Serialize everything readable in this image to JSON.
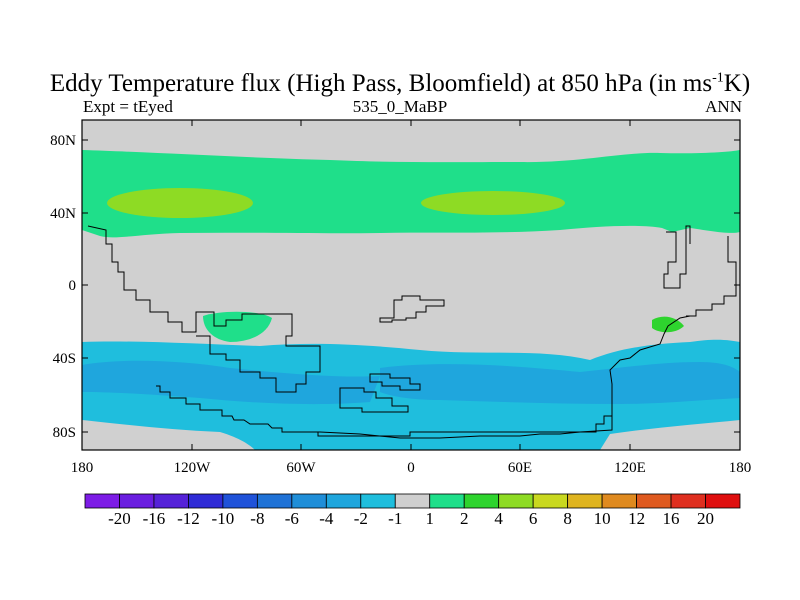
{
  "title": {
    "main": "Eddy Temperature flux (High Pass, Bloomfield) at 850 hPa (in ms",
    "sup": "-1",
    "unit_end": "K)"
  },
  "subtitle": {
    "left": "Expt = tEyed",
    "center": "535_0_MaBP",
    "right": "ANN"
  },
  "axes": {
    "y_ticks": [
      "80N",
      "40N",
      "0",
      "40S",
      "80S"
    ],
    "x_ticks": [
      "180",
      "120W",
      "60W",
      "0",
      "60E",
      "120E",
      "180"
    ]
  },
  "colorbar": {
    "labels": [
      "-20",
      "-16",
      "-12",
      "-10",
      "-8",
      "-6",
      "-4",
      "-2",
      "-1",
      "1",
      "2",
      "4",
      "6",
      "8",
      "10",
      "12",
      "16",
      "20"
    ],
    "colors": [
      "#7d1ce6",
      "#6a1ee0",
      "#5522d8",
      "#2f2bd6",
      "#1f52d9",
      "#1f72d6",
      "#1f8ed8",
      "#1fa6dd",
      "#1fbedd",
      "#cfcfcf",
      "#1fdf8a",
      "#2ed42e",
      "#8edb24",
      "#c9d81f",
      "#dfb41f",
      "#df8a1f",
      "#df5a1f",
      "#df2f1f",
      "#df0f0f"
    ]
  },
  "map": {
    "background_color": "#d0d0d0",
    "regions": [
      {
        "name": "northern-band",
        "color": "#1fdf8a"
      },
      {
        "name": "northern-core",
        "color": "#8edb24"
      },
      {
        "name": "southern-band",
        "color": "#1fbedd"
      },
      {
        "name": "southern-core",
        "color": "#1fa6dd"
      }
    ]
  }
}
